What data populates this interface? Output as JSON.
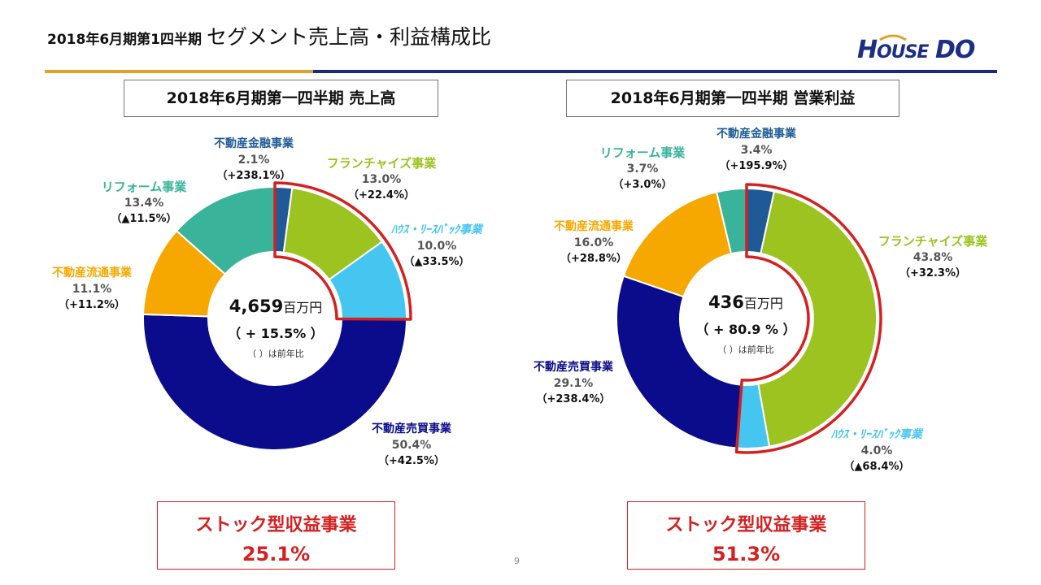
{
  "header": {
    "title_small": "2018年6月期第1四半期",
    "title_large": "セグメント売上高・利益構成比",
    "logo": "HOUSEDO"
  },
  "page_number": "9",
  "colors": {
    "finance": "#1f5a96",
    "franchise": "#9cc31f",
    "leaseback": "#45c6f0",
    "trading": "#0b0c8c",
    "brokerage": "#f7a800",
    "reform": "#39b49a",
    "highlight": "#d62020"
  },
  "chart_data": [
    {
      "type": "pie",
      "title": "2018年6月期第一四半期 売上高",
      "center_total": "4,659",
      "center_unit": "百万円",
      "center_growth": "（ + 15.5% ）",
      "center_note": "（ ）は前年比",
      "series": [
        {
          "key": "finance",
          "name": "不動産金融事業",
          "value": 2.1,
          "label": "2.1%",
          "yoy": "（+238.1%）"
        },
        {
          "key": "franchise",
          "name": "フランチャイズ事業",
          "value": 13.0,
          "label": "13.0%",
          "yoy": "（+22.4%）"
        },
        {
          "key": "leaseback",
          "name": "ﾊｳｽ・ﾘｰｽﾊﾞｯｸ事業",
          "value": 10.0,
          "label": "10.0%",
          "yoy": "（▲33.5%）"
        },
        {
          "key": "trading",
          "name": "不動産売買事業",
          "value": 50.4,
          "label": "50.4%",
          "yoy": "（+42.5%）"
        },
        {
          "key": "brokerage",
          "name": "不動産流通事業",
          "value": 11.1,
          "label": "11.1%",
          "yoy": "（+11.2%）"
        },
        {
          "key": "reform",
          "name": "リフォーム事業",
          "value": 13.4,
          "label": "13.4%",
          "yoy": "（▲11.5%）"
        }
      ],
      "stock_label": "ストック型収益事業",
      "stock_value": "25.1%"
    },
    {
      "type": "pie",
      "title": "2018年6月期第一四半期 営業利益",
      "center_total": "436",
      "center_unit": "百万円",
      "center_growth": "（ + 80.9 % ）",
      "center_note": "（ ）は前年比",
      "series": [
        {
          "key": "finance",
          "name": "不動産金融事業",
          "value": 3.4,
          "label": "3.4%",
          "yoy": "（+195.9%）"
        },
        {
          "key": "franchise",
          "name": "フランチャイズ事業",
          "value": 43.8,
          "label": "43.8%",
          "yoy": "（+32.3%）"
        },
        {
          "key": "leaseback",
          "name": "ﾊｳｽ・ﾘｰｽﾊﾞｯｸ事業",
          "value": 4.0,
          "label": "4.0%",
          "yoy": "（▲68.4%）"
        },
        {
          "key": "trading",
          "name": "不動産売買事業",
          "value": 29.1,
          "label": "29.1%",
          "yoy": "（+238.4%）"
        },
        {
          "key": "brokerage",
          "name": "不動産流通事業",
          "value": 16.0,
          "label": "16.0%",
          "yoy": "（+28.8%）"
        },
        {
          "key": "reform",
          "name": "リフォーム事業",
          "value": 3.7,
          "label": "3.7%",
          "yoy": "（+3.0%）"
        }
      ],
      "stock_label": "ストック型収益事業",
      "stock_value": "51.3%"
    }
  ]
}
